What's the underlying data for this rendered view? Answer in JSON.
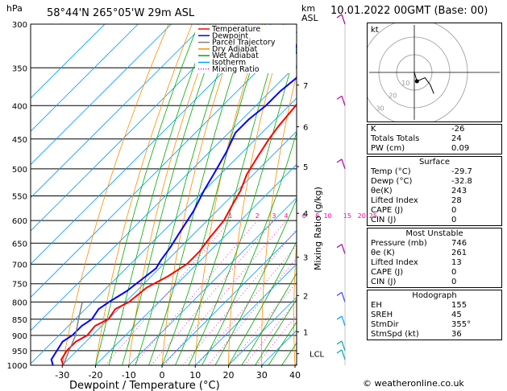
{
  "header": {
    "units_left": "hPa",
    "location": "58°44'N 265°05'W 29m ASL",
    "units_right_1": "km",
    "units_right_2": "ASL",
    "datetime": "10.01.2022 00GMT (Base: 00)"
  },
  "legend": [
    {
      "label": "Temperature",
      "color": "#ff0000",
      "style": "solid"
    },
    {
      "label": "Dewpoint",
      "color": "#0000ff",
      "style": "solid"
    },
    {
      "label": "Parcel Trajectory",
      "color": "#808080",
      "style": "solid"
    },
    {
      "label": "Dry Adiabat",
      "color": "#ff8c00",
      "style": "solid"
    },
    {
      "label": "Wet Adiabat",
      "color": "#00aa00",
      "style": "solid"
    },
    {
      "label": "Isotherm",
      "color": "#00a0ff",
      "style": "solid"
    },
    {
      "label": "Mixing Ratio",
      "color": "#ff00aa",
      "style": "dotted"
    }
  ],
  "chart_data": {
    "type": "line",
    "pressure_levels": [
      300,
      350,
      400,
      450,
      500,
      550,
      600,
      650,
      700,
      750,
      800,
      850,
      900,
      950,
      1000
    ],
    "pressure_labels": [
      "300",
      "350",
      "400",
      "450",
      "500",
      "550",
      "600",
      "650",
      "700",
      "750",
      "800",
      "850",
      "900",
      "950",
      "1000"
    ],
    "x_ticks": [
      -30,
      -20,
      -10,
      0,
      10,
      20,
      30,
      40
    ],
    "x_tick_labels": [
      "-30",
      "-20",
      "-10",
      "0",
      "10",
      "20",
      "30",
      "40"
    ],
    "xlabel": "Dewpoint / Temperature (°C)",
    "ylabel_right": "Mixing Ratio (g/kg)",
    "xlim": [
      -40,
      40
    ],
    "ylim": [
      1000,
      300
    ],
    "skew": "45deg",
    "series": [
      {
        "name": "Temperature",
        "color": "#ff0000",
        "points": [
          [
            -29.7,
            1000
          ],
          [
            -32,
            980
          ],
          [
            -33,
            950
          ],
          [
            -33,
            920
          ],
          [
            -31.5,
            900
          ],
          [
            -32,
            870
          ],
          [
            -30,
            850
          ],
          [
            -31,
            820
          ],
          [
            -29,
            800
          ],
          [
            -28,
            760
          ],
          [
            -25,
            730
          ],
          [
            -23,
            700
          ],
          [
            -23,
            670
          ],
          [
            -24,
            640
          ],
          [
            -25,
            600
          ],
          [
            -27,
            570
          ],
          [
            -29,
            540
          ],
          [
            -32,
            510
          ],
          [
            -34,
            480
          ],
          [
            -36,
            450
          ],
          [
            -37,
            430
          ],
          [
            -38,
            400
          ],
          [
            -40,
            370
          ],
          [
            -43,
            345
          ],
          [
            -45,
            320
          ],
          [
            -47,
            300
          ]
        ]
      },
      {
        "name": "Dewpoint",
        "color": "#0000ff",
        "points": [
          [
            -32.8,
            1000
          ],
          [
            -35,
            980
          ],
          [
            -36,
            950
          ],
          [
            -37,
            920
          ],
          [
            -36,
            900
          ],
          [
            -36,
            870
          ],
          [
            -35,
            850
          ],
          [
            -36,
            820
          ],
          [
            -35,
            800
          ],
          [
            -33,
            770
          ],
          [
            -32,
            740
          ],
          [
            -31,
            710
          ],
          [
            -32,
            690
          ],
          [
            -33,
            660
          ],
          [
            -35,
            620
          ],
          [
            -37,
            580
          ],
          [
            -40,
            540
          ],
          [
            -42,
            510
          ],
          [
            -45,
            470
          ],
          [
            -48,
            440
          ],
          [
            -48,
            420
          ],
          [
            -47,
            400
          ],
          [
            -47,
            380
          ],
          [
            -46,
            360
          ],
          [
            -49,
            340
          ],
          [
            -55,
            330
          ],
          [
            -58,
            310
          ],
          [
            -59,
            300
          ]
        ]
      },
      {
        "name": "Parcel Trajectory",
        "color": "#808080",
        "points": [
          [
            -29.7,
            1000
          ],
          [
            -31.8,
            960
          ],
          [
            -35,
            900
          ],
          [
            -39,
            850
          ],
          [
            -43,
            800
          ]
        ]
      }
    ],
    "mixing_ratio_values": [
      1,
      2,
      3,
      4,
      6,
      8,
      10,
      15,
      20,
      25
    ],
    "mixing_ratio_labels": [
      "1",
      "2",
      "3",
      "4",
      "6",
      "8",
      "10",
      "15",
      "20",
      "25"
    ],
    "km_levels": [
      {
        "label": "7",
        "p": 372
      },
      {
        "label": "6",
        "p": 431
      },
      {
        "label": "5",
        "p": 496
      },
      {
        "label": "4",
        "p": 585
      },
      {
        "label": "3",
        "p": 683
      },
      {
        "label": "2",
        "p": 782
      },
      {
        "label": "1",
        "p": 889
      },
      {
        "label": "LCL",
        "p": 960
      }
    ],
    "wind_barbs": [
      {
        "p": 300,
        "color": "#aa00aa"
      },
      {
        "p": 400,
        "color": "#aa00aa"
      },
      {
        "p": 500,
        "color": "#aa00aa"
      },
      {
        "p": 675,
        "color": "#aa00aa"
      },
      {
        "p": 800,
        "color": "#4040ff"
      },
      {
        "p": 870,
        "color": "#00a0ff"
      },
      {
        "p": 950,
        "color": "#00aaaa"
      },
      {
        "p": 980,
        "color": "#00aaaa"
      }
    ]
  },
  "hodograph": {
    "label": "kt",
    "ring_labels": [
      "10",
      "20",
      "30"
    ],
    "trace": [
      [
        0,
        0
      ],
      [
        1.5,
        -5
      ],
      [
        6,
        -3
      ],
      [
        9,
        -7
      ],
      [
        11,
        -12
      ]
    ]
  },
  "indices": [
    {
      "label": "K",
      "value": "-26"
    },
    {
      "label": "Totals Totals",
      "value": "24"
    },
    {
      "label": "PW (cm)",
      "value": "0.09"
    }
  ],
  "surface": {
    "title": "Surface",
    "rows": [
      {
        "label": "Temp (°C)",
        "value": "-29.7"
      },
      {
        "label": "Dewp (°C)",
        "value": "-32.8"
      },
      {
        "label": "θe(K)",
        "value": "243"
      },
      {
        "label": "Lifted Index",
        "value": "28"
      },
      {
        "label": "CAPE (J)",
        "value": "0"
      },
      {
        "label": "CIN (J)",
        "value": "0"
      }
    ]
  },
  "most_unstable": {
    "title": "Most Unstable",
    "rows": [
      {
        "label": "Pressure (mb)",
        "value": "746"
      },
      {
        "label": "θe (K)",
        "value": "261"
      },
      {
        "label": "Lifted Index",
        "value": "13"
      },
      {
        "label": "CAPE (J)",
        "value": "0"
      },
      {
        "label": "CIN (J)",
        "value": "0"
      }
    ]
  },
  "hodograph_params": {
    "title": "Hodograph",
    "rows": [
      {
        "label": "EH",
        "value": "155"
      },
      {
        "label": "SREH",
        "value": "45"
      },
      {
        "label": "StmDir",
        "value": "355°"
      },
      {
        "label": "StmSpd (kt)",
        "value": "36"
      }
    ]
  },
  "copyright": "© weatheronline.co.uk"
}
